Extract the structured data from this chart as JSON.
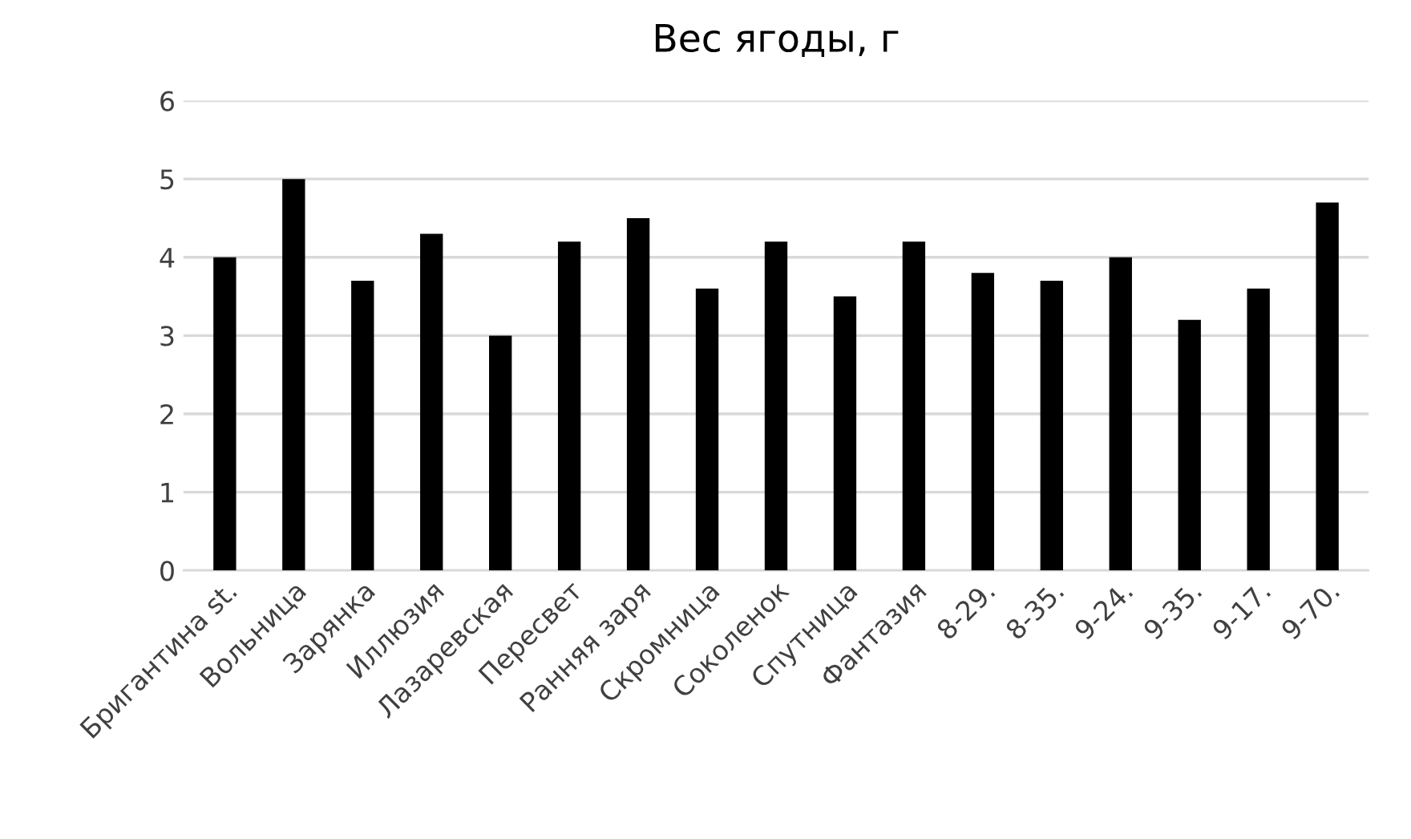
{
  "chart_data": {
    "type": "bar",
    "title": "Вес ягоды, г",
    "categories": [
      "Бригантина st.",
      "Вольница",
      "Зарянка",
      "Иллюзия",
      "Лазаревская",
      "Пересвет",
      "Ранняя заря",
      "Скромница",
      "Соколенок",
      "Спутница",
      "Фантазия",
      "8-29.",
      "8-35.",
      "9-24.",
      "9-35.",
      "9-17.",
      "9-70."
    ],
    "values": [
      4.0,
      5.0,
      3.7,
      4.3,
      3.0,
      4.2,
      4.5,
      3.6,
      4.2,
      3.5,
      4.2,
      3.8,
      3.7,
      4.0,
      3.2,
      3.6,
      4.7
    ],
    "color": "#000000",
    "ylim": [
      0,
      6
    ],
    "yticks": [
      0,
      1,
      2,
      3,
      4,
      5,
      6
    ],
    "grid": "y"
  }
}
